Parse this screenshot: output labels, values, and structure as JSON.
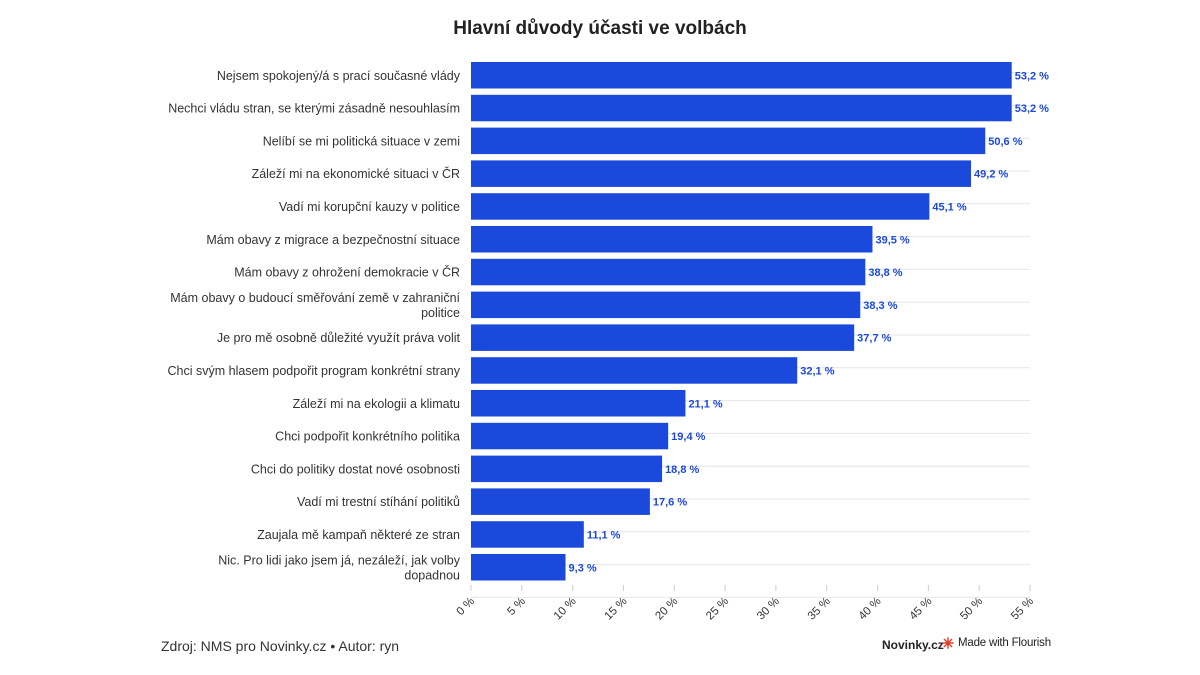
{
  "chart_data": {
    "type": "bar",
    "orientation": "horizontal",
    "title": "Hlavní důvody účasti ve volbách",
    "categories": [
      "Nejsem spokojený/á s prací současné vlády",
      "Nechci vládu stran, se kterými zásadně nesouhlasím",
      "Nelíbí se mi politická situace v zemi",
      "Záleží mi na ekonomické situaci v ČR",
      "Vadí mi korupční kauzy v politice",
      "Mám obavy z migrace a bezpečnostní situace",
      "Mám obavy z ohrožení demokracie v ČR",
      "Mám obavy o budoucí směřování země v zahraniční politice",
      "Je pro mě osobně důležité využít práva volit",
      "Chci svým hlasem podpořit program konkrétní strany",
      "Záleží mi na ekologii a klimatu",
      "Chci podpořit konkrétního politika",
      "Chci do politiky dostat nové osobnosti",
      "Vadí mi trestní stíhání politiků",
      "Zaujala mě kampaň některé ze stran",
      "Nic. Pro lidi jako jsem já, nezáleží, jak volby dopadnou"
    ],
    "values": [
      53.2,
      53.2,
      50.6,
      49.2,
      45.1,
      39.5,
      38.8,
      38.3,
      37.7,
      32.1,
      21.1,
      19.4,
      18.8,
      17.6,
      11.1,
      9.3
    ],
    "value_labels": [
      "53,2 %",
      "53,2 %",
      "50,6 %",
      "49,2 %",
      "45,1 %",
      "39,5 %",
      "38,8 %",
      "38,3 %",
      "37,7 %",
      "32,1 %",
      "21,1 %",
      "19,4 %",
      "18,8 %",
      "17,6 %",
      "11,1 %",
      "9,3 %"
    ],
    "xlim": [
      0,
      55
    ],
    "ticks": [
      0,
      5,
      10,
      15,
      20,
      25,
      30,
      35,
      40,
      45,
      50,
      55
    ],
    "tick_labels": [
      "0 %",
      "5 %",
      "10 %",
      "15 %",
      "20 %",
      "25 %",
      "30 %",
      "35 %",
      "40 %",
      "45 %",
      "50 %",
      "55 %"
    ],
    "xlabel": "",
    "ylabel": "",
    "grid": true,
    "bar_color": "#1a49db",
    "label_color": "#1a49db"
  },
  "footer": {
    "source": "Zdroj: NMS pro Novinky.cz • Autor: ryn",
    "brand": "Novinky.cz",
    "flourish": "Made with Flourish"
  },
  "colors": {
    "flourish_mark": "#e0402a"
  }
}
